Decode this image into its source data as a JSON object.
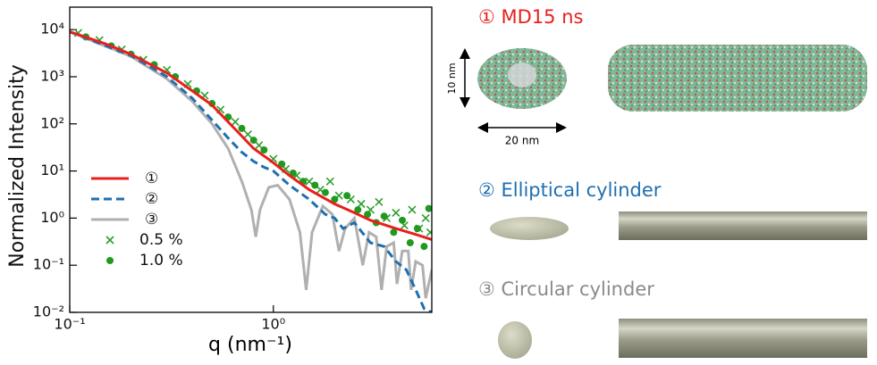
{
  "chart_data": {
    "type": "line",
    "xlabel": "q (nm⁻¹)",
    "ylabel": "Normalized Intensity",
    "xscale": "log",
    "yscale": "log",
    "xlim": [
      0.1,
      6
    ],
    "ylim": [
      0.01,
      30000
    ],
    "xticks": [
      {
        "value": 0.1,
        "label": "10⁻¹"
      },
      {
        "value": 1,
        "label": "10⁰"
      }
    ],
    "yticks": [
      {
        "value": 0.01,
        "label": "10⁻²"
      },
      {
        "value": 0.1,
        "label": "10⁻¹"
      },
      {
        "value": 1,
        "label": "10⁰"
      },
      {
        "value": 10,
        "label": "10¹"
      },
      {
        "value": 100,
        "label": "10²"
      },
      {
        "value": 1000,
        "label": "10³"
      },
      {
        "value": 10000,
        "label": "10⁴"
      }
    ],
    "legend": "lower left",
    "series": [
      {
        "name": "0.5 %",
        "type": "scatter",
        "marker": "x",
        "color": "#2ca02c",
        "x": [
          0.11,
          0.14,
          0.18,
          0.23,
          0.3,
          0.38,
          0.46,
          0.55,
          0.65,
          0.75,
          0.85,
          1.0,
          1.15,
          1.3,
          1.5,
          1.7,
          1.9,
          2.1,
          2.4,
          2.7,
          3.0,
          3.3,
          3.6,
          4.0,
          4.4,
          4.8,
          5.2,
          5.6,
          5.9
        ],
        "values": [
          8500,
          6000,
          3800,
          2300,
          1400,
          700,
          400,
          200,
          110,
          60,
          35,
          18,
          11,
          8,
          6,
          4,
          6,
          3,
          2.5,
          2,
          1.5,
          2.2,
          1,
          1.3,
          0.7,
          1.5,
          0.6,
          1.0,
          0.5
        ]
      },
      {
        "name": "1.0 %",
        "type": "scatter",
        "marker": "o",
        "color": "#1f9a1f",
        "x": [
          0.12,
          0.16,
          0.2,
          0.26,
          0.33,
          0.42,
          0.5,
          0.6,
          0.7,
          0.8,
          0.9,
          1.1,
          1.25,
          1.4,
          1.6,
          1.8,
          2.0,
          2.3,
          2.6,
          2.9,
          3.2,
          3.5,
          3.9,
          4.3,
          4.7,
          5.1,
          5.5,
          5.8
        ],
        "values": [
          7000,
          4500,
          3000,
          1800,
          1000,
          500,
          270,
          140,
          80,
          45,
          28,
          14,
          9,
          6,
          5,
          3.5,
          2.5,
          3,
          1.5,
          1.2,
          0.8,
          1.1,
          0.5,
          0.9,
          0.3,
          0.6,
          0.25,
          1.6
        ]
      },
      {
        "name": "③",
        "type": "line",
        "style": "solid",
        "color": "#b0b0b0",
        "x": [
          0.1,
          0.2,
          0.3,
          0.4,
          0.5,
          0.6,
          0.7,
          0.78,
          0.82,
          0.86,
          0.95,
          1.05,
          1.2,
          1.35,
          1.45,
          1.55,
          1.75,
          1.95,
          2.1,
          2.25,
          2.5,
          2.75,
          2.95,
          3.2,
          3.4,
          3.6,
          3.9,
          4.05,
          4.3,
          4.6,
          4.75,
          5.0,
          5.4,
          5.6,
          6.0
        ],
        "values": [
          9000,
          2700,
          900,
          300,
          100,
          30,
          6,
          1.5,
          0.4,
          1.5,
          4.5,
          5,
          2.5,
          0.5,
          0.03,
          0.5,
          1.8,
          1.2,
          0.2,
          0.6,
          1,
          0.1,
          0.5,
          0.4,
          0.03,
          0.25,
          0.3,
          0.04,
          0.2,
          0.2,
          0.03,
          0.12,
          0.1,
          0.02,
          0.08
        ]
      },
      {
        "name": "②",
        "type": "line",
        "style": "dashed",
        "color": "#1f6fb0",
        "x": [
          0.1,
          0.2,
          0.3,
          0.4,
          0.5,
          0.6,
          0.7,
          0.8,
          0.9,
          1.0,
          1.2,
          1.5,
          1.8,
          2.0,
          2.2,
          2.5,
          3.0,
          3.5,
          4.0,
          4.5,
          5.0,
          5.5,
          6.0
        ],
        "values": [
          9000,
          2800,
          1000,
          350,
          120,
          50,
          25,
          16,
          12,
          10,
          5,
          2.5,
          1.2,
          1.0,
          0.6,
          0.8,
          0.3,
          0.25,
          0.12,
          0.08,
          0.03,
          0.012,
          0.01
        ]
      },
      {
        "name": "①",
        "type": "line",
        "style": "solid",
        "color": "#e8201c",
        "x": [
          0.1,
          0.15,
          0.2,
          0.3,
          0.4,
          0.5,
          0.6,
          0.7,
          0.8,
          1.0,
          1.2,
          1.5,
          2.0,
          2.5,
          3.0,
          4.0,
          5.0,
          6.0
        ],
        "values": [
          9000,
          5000,
          3000,
          1200,
          500,
          250,
          110,
          55,
          30,
          15,
          8,
          4,
          2,
          1.3,
          0.9,
          0.6,
          0.45,
          0.35
        ]
      }
    ]
  },
  "panel": {
    "md": {
      "title": "① MD15 ns",
      "height": "10 nm",
      "width": "20 nm"
    },
    "elliptical": {
      "title": "② Elliptical cylinder"
    },
    "circular": {
      "title": "③ Circular cylinder"
    }
  }
}
